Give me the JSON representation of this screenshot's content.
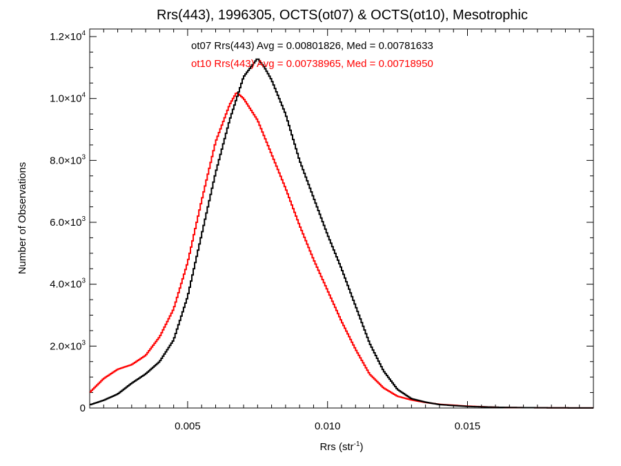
{
  "chart_data": {
    "type": "line",
    "title": "Rrs(443), 1996305, OCTS(ot07) & OCTS(ot10), Mesotrophic",
    "xlabel": {
      "base": "Rrs (str",
      "sup": "-1",
      "close": ")"
    },
    "ylabel": "Number of Observations",
    "xlim": [
      0.0015,
      0.0195
    ],
    "ylim": [
      0,
      12000
    ],
    "x_ticks": [
      {
        "value": 0.005,
        "label": "0.005"
      },
      {
        "value": 0.01,
        "label": "0.010"
      },
      {
        "value": 0.015,
        "label": "0.015"
      }
    ],
    "y_ticks": [
      {
        "value": 0,
        "mant": "0",
        "exp": ""
      },
      {
        "value": 2000,
        "mant": "2.0×10",
        "exp": "3"
      },
      {
        "value": 4000,
        "mant": "4.0×10",
        "exp": "3"
      },
      {
        "value": 6000,
        "mant": "6.0×10",
        "exp": "3"
      },
      {
        "value": 8000,
        "mant": "8.0×10",
        "exp": "3"
      },
      {
        "value": 10000,
        "mant": "1.0×10",
        "exp": "4"
      },
      {
        "value": 12000,
        "mant": "1.2×10",
        "exp": "4"
      }
    ],
    "grid": false,
    "series": [
      {
        "label": "ot07 Rrs(443) Avg = 0.00801826, Med = 0.00781633",
        "color": "#000000",
        "x": [
          0.0015,
          0.002,
          0.0025,
          0.003,
          0.0035,
          0.004,
          0.0045,
          0.005,
          0.0055,
          0.006,
          0.0065,
          0.007,
          0.00725,
          0.0075,
          0.00775,
          0.008,
          0.0085,
          0.009,
          0.0095,
          0.01,
          0.0105,
          0.011,
          0.0115,
          0.012,
          0.0125,
          0.013,
          0.0135,
          0.014,
          0.015,
          0.016,
          0.017,
          0.018,
          0.019,
          0.0195
        ],
        "y": [
          100,
          250,
          450,
          800,
          1100,
          1500,
          2200,
          3600,
          5600,
          7600,
          9300,
          10700,
          11000,
          11300,
          11000,
          10600,
          9500,
          8000,
          6800,
          5600,
          4500,
          3300,
          2100,
          1200,
          600,
          300,
          190,
          110,
          50,
          25,
          12,
          6,
          3,
          2
        ]
      },
      {
        "label": "ot10 Rrs(443) Avg = 0.00738965, Med = 0.00718950",
        "color": "#ff0000",
        "x": [
          0.0015,
          0.002,
          0.0025,
          0.003,
          0.0035,
          0.004,
          0.0045,
          0.005,
          0.0055,
          0.006,
          0.0065,
          0.00675,
          0.007,
          0.0075,
          0.008,
          0.0085,
          0.009,
          0.0095,
          0.01,
          0.0105,
          0.011,
          0.0115,
          0.012,
          0.0125,
          0.013,
          0.0135,
          0.014,
          0.015,
          0.016,
          0.017,
          0.018,
          0.019,
          0.0195
        ],
        "y": [
          500,
          950,
          1250,
          1400,
          1700,
          2300,
          3200,
          4700,
          6700,
          8600,
          9800,
          10200,
          10000,
          9300,
          8200,
          7100,
          5900,
          4800,
          3800,
          2800,
          1900,
          1100,
          650,
          380,
          260,
          180,
          120,
          60,
          25,
          12,
          6,
          3,
          2
        ]
      }
    ]
  }
}
